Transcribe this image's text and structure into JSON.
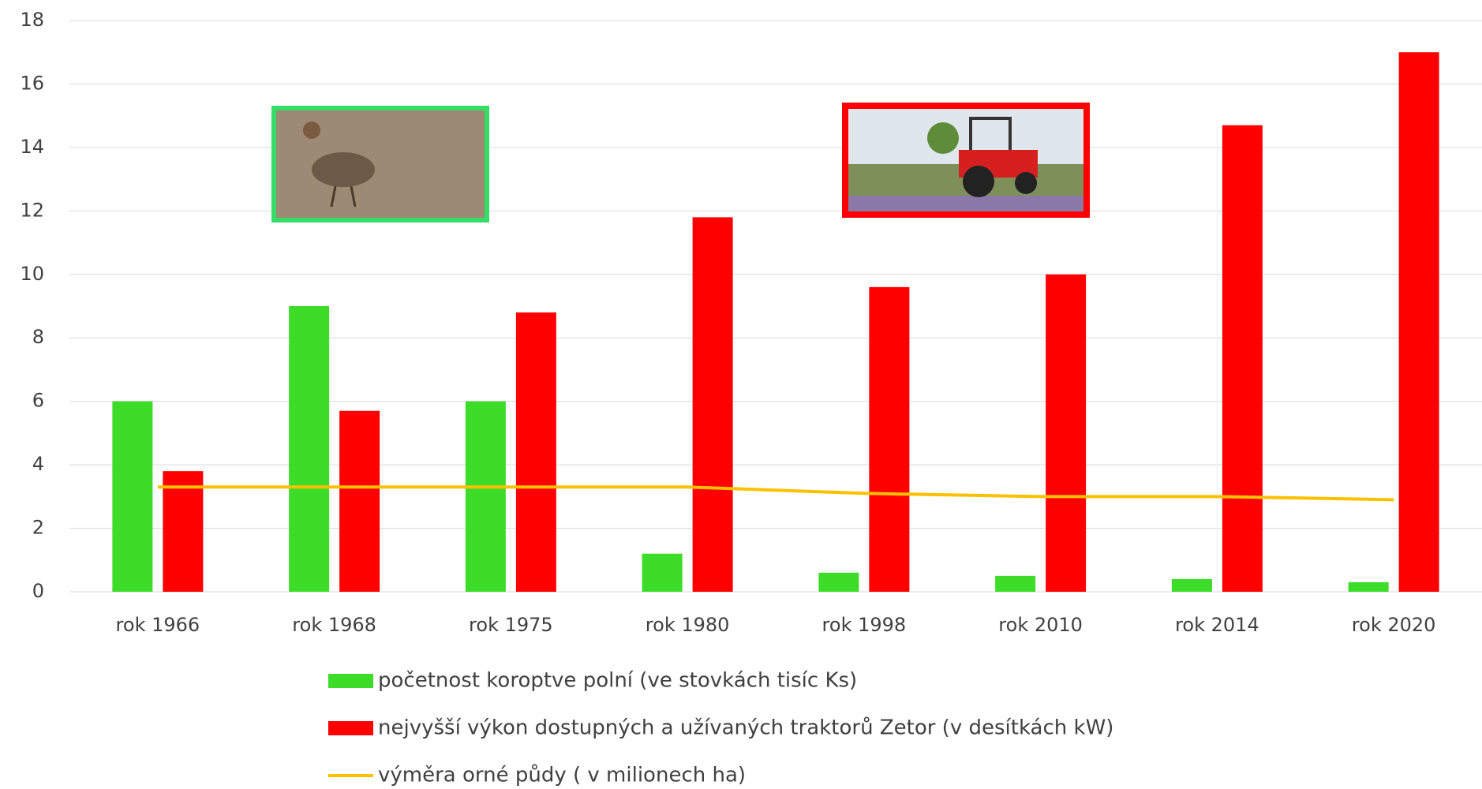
{
  "chart_data": {
    "type": "bar",
    "categories": [
      "rok 1966",
      "rok 1968",
      "rok 1975",
      "rok 1980",
      "rok 1998",
      "rok 2010",
      "rok 2014",
      "rok 2020"
    ],
    "series": [
      {
        "name": "početnost koroptve polní  (ve stovkách  tisíc Ks)",
        "color": "#3cdc28",
        "type": "bar",
        "values": [
          6,
          9,
          6,
          1.2,
          0.6,
          0.5,
          0.4,
          0.3
        ]
      },
      {
        "name": "nejvyšší výkon dostupných a užívaných traktorů Zetor (v desítkách kW)",
        "color": "#ff0000",
        "type": "bar",
        "values": [
          3.8,
          5.7,
          8.8,
          11.8,
          9.6,
          10,
          14.7,
          17
        ]
      },
      {
        "name": "výměra orné půdy ( v milionech ha)",
        "color": "#ffc000",
        "type": "line",
        "values": [
          3.3,
          3.3,
          3.3,
          3.3,
          3.1,
          3.0,
          3.0,
          2.9
        ]
      }
    ],
    "ylim": [
      0,
      18
    ],
    "yticks": [
      0,
      2,
      4,
      6,
      8,
      10,
      12,
      14,
      16,
      18
    ],
    "grid": true
  }
}
